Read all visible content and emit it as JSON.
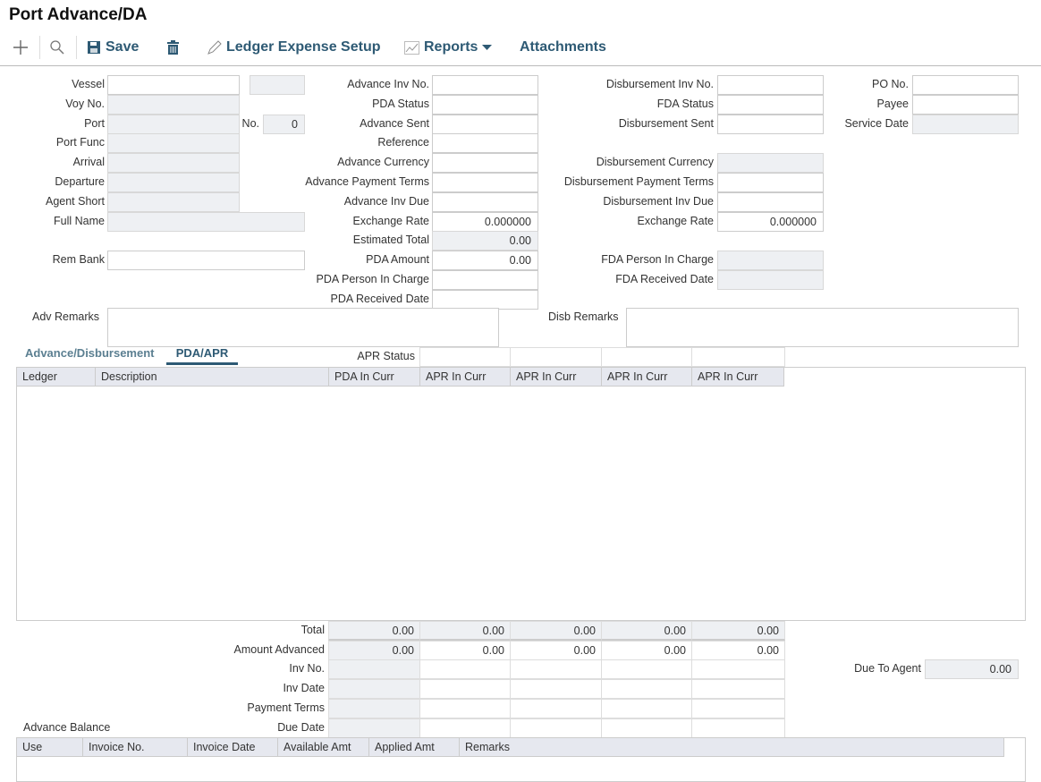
{
  "page_title": "Port Advance/DA",
  "toolbar": {
    "add_icon": "plus-icon",
    "search_icon": "magnifier-icon",
    "save": "Save",
    "delete_icon": "trash-icon",
    "ledger_expense_setup": "Ledger Expense Setup",
    "reports": "Reports",
    "attachments": "Attachments"
  },
  "fields": {
    "vessel": {
      "label": "Vessel",
      "value": ""
    },
    "vessel_code": {
      "label": "",
      "value": "",
      "readonly": true
    },
    "voy_no": {
      "label": "Voy No.",
      "value": "",
      "readonly": true
    },
    "port": {
      "label": "Port",
      "value": "",
      "readonly": true
    },
    "port_no": {
      "label": "No.",
      "value": "0",
      "readonly": true
    },
    "port_func": {
      "label": "Port Func",
      "value": "",
      "readonly": true
    },
    "arrival": {
      "label": "Arrival",
      "value": "",
      "readonly": true
    },
    "departure": {
      "label": "Departure",
      "value": "",
      "readonly": true
    },
    "agent_short": {
      "label": "Agent Short",
      "value": "",
      "readonly": true
    },
    "full_name": {
      "label": "Full Name",
      "value": "",
      "readonly": true
    },
    "rem_bank": {
      "label": "Rem Bank",
      "value": ""
    },
    "advance_inv_no": {
      "label": "Advance Inv No.",
      "value": ""
    },
    "pda_status": {
      "label": "PDA Status",
      "value": ""
    },
    "advance_sent": {
      "label": "Advance Sent",
      "value": ""
    },
    "reference": {
      "label": "Reference",
      "value": ""
    },
    "advance_currency": {
      "label": "Advance Currency",
      "value": ""
    },
    "advance_payment_terms": {
      "label": "Advance Payment Terms",
      "value": ""
    },
    "advance_inv_due": {
      "label": "Advance Inv Due",
      "value": ""
    },
    "adv_exchange_rate": {
      "label": "Exchange Rate",
      "value": "0.000000"
    },
    "estimated_total": {
      "label": "Estimated Total",
      "value": "0.00",
      "readonly": true
    },
    "pda_amount": {
      "label": "PDA Amount",
      "value": "0.00"
    },
    "pda_person_in_charge": {
      "label": "PDA Person In Charge",
      "value": ""
    },
    "pda_received_date": {
      "label": "PDA Received Date",
      "value": ""
    },
    "disbursement_inv_no": {
      "label": "Disbursement Inv No.",
      "value": ""
    },
    "fda_status": {
      "label": "FDA Status",
      "value": ""
    },
    "disbursement_sent": {
      "label": "Disbursement Sent",
      "value": ""
    },
    "disbursement_currency": {
      "label": "Disbursement Currency",
      "value": "",
      "readonly": true
    },
    "disbursement_payment_terms": {
      "label": "Disbursement Payment Terms",
      "value": ""
    },
    "disbursement_inv_due": {
      "label": "Disbursement Inv Due",
      "value": ""
    },
    "disb_exchange_rate": {
      "label": "Exchange Rate",
      "value": "0.000000"
    },
    "fda_person_in_charge": {
      "label": "FDA Person In Charge",
      "value": "",
      "readonly": true
    },
    "fda_received_date": {
      "label": "FDA Received Date",
      "value": "",
      "readonly": true
    },
    "po_no": {
      "label": "PO No.",
      "value": ""
    },
    "payee": {
      "label": "Payee",
      "value": ""
    },
    "service_date": {
      "label": "Service Date",
      "value": "",
      "readonly": true
    },
    "due_to_agent": {
      "label": "Due To Agent",
      "value": "0.00",
      "readonly": true
    }
  },
  "remarks": {
    "adv_label": "Adv Remarks",
    "adv_value": "",
    "disb_label": "Disb Remarks",
    "disb_value": ""
  },
  "tabs": [
    {
      "label": "Advance/Disbursement",
      "active": false
    },
    {
      "label": "PDA/APR",
      "active": true
    }
  ],
  "apr_status_label": "APR Status",
  "ledger_grid": {
    "columns": [
      "Ledger",
      "Description",
      "PDA In Curr",
      "APR In Curr",
      "APR In Curr",
      "APR In Curr",
      "APR In Curr"
    ],
    "rows": []
  },
  "summary": {
    "rows": [
      {
        "label": "Total",
        "values": [
          "0.00",
          "0.00",
          "0.00",
          "0.00",
          "0.00"
        ]
      },
      {
        "label": "Amount Advanced",
        "values": [
          "0.00",
          "0.00",
          "0.00",
          "0.00",
          "0.00"
        ]
      },
      {
        "label": "Inv No.",
        "values": [
          "",
          "",
          "",
          "",
          ""
        ]
      },
      {
        "label": "Inv Date",
        "values": [
          "",
          "",
          "",
          "",
          ""
        ]
      },
      {
        "label": "Payment Terms",
        "values": [
          "",
          "",
          "",
          "",
          ""
        ]
      },
      {
        "label": "Due Date",
        "values": [
          "",
          "",
          "",
          "",
          ""
        ]
      }
    ]
  },
  "advance_balance": {
    "label": "Advance Balance",
    "columns": [
      "Use",
      "Invoice No.",
      "Invoice Date",
      "Available Amt",
      "Applied Amt",
      "Remarks"
    ],
    "rows": []
  }
}
